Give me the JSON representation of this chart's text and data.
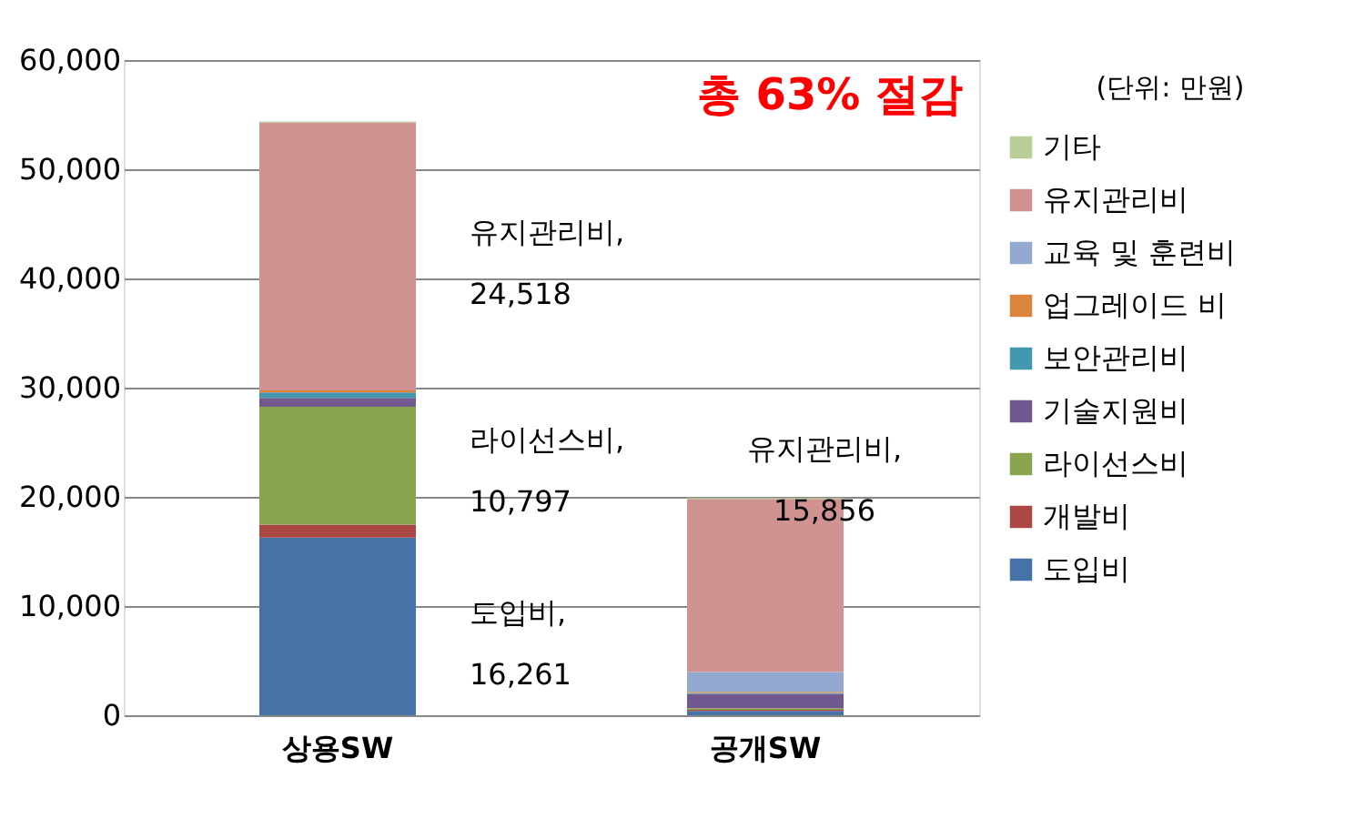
{
  "chart_data": {
    "type": "bar",
    "stacked": true,
    "categories": [
      "상용SW",
      "공개SW"
    ],
    "series": [
      {
        "name": "도입비",
        "color": "#4572a7",
        "values": [
          16261,
          400
        ]
      },
      {
        "name": "개발비",
        "color": "#aa4643",
        "values": [
          1200,
          100
        ]
      },
      {
        "name": "라이선스비",
        "color": "#89a54e",
        "values": [
          10797,
          150
        ]
      },
      {
        "name": "기술지원비",
        "color": "#71588f",
        "values": [
          800,
          1300
        ]
      },
      {
        "name": "보안관리비",
        "color": "#4198af",
        "values": [
          500,
          100
        ]
      },
      {
        "name": "업그레이드 비",
        "color": "#db843d",
        "values": [
          200,
          100
        ]
      },
      {
        "name": "교육 및 훈련비",
        "color": "#93a9cf",
        "values": [
          0,
          1800
        ]
      },
      {
        "name": "유지관리비",
        "color": "#d19392",
        "values": [
          24518,
          15856
        ]
      },
      {
        "name": "기타",
        "color": "#b9cd96",
        "values": [
          100,
          100
        ]
      }
    ],
    "ylim": [
      0,
      60000
    ],
    "yticks": [
      {
        "value": 0,
        "label": "0"
      },
      {
        "value": 10000,
        "label": "10,000"
      },
      {
        "value": 20000,
        "label": "20,000"
      },
      {
        "value": 30000,
        "label": "30,000"
      },
      {
        "value": 40000,
        "label": "40,000"
      },
      {
        "value": 50000,
        "label": "50,000"
      },
      {
        "value": 60000,
        "label": "60,000"
      }
    ],
    "grid": "y",
    "legend": "right",
    "annotations": [
      "유지관리비,\n24,518",
      "라이선스비,\n10,797",
      "도입비,\n16,261",
      "유지관리비,\n15,856",
      "총 63% 절감",
      "(단위: 만원)"
    ]
  }
}
